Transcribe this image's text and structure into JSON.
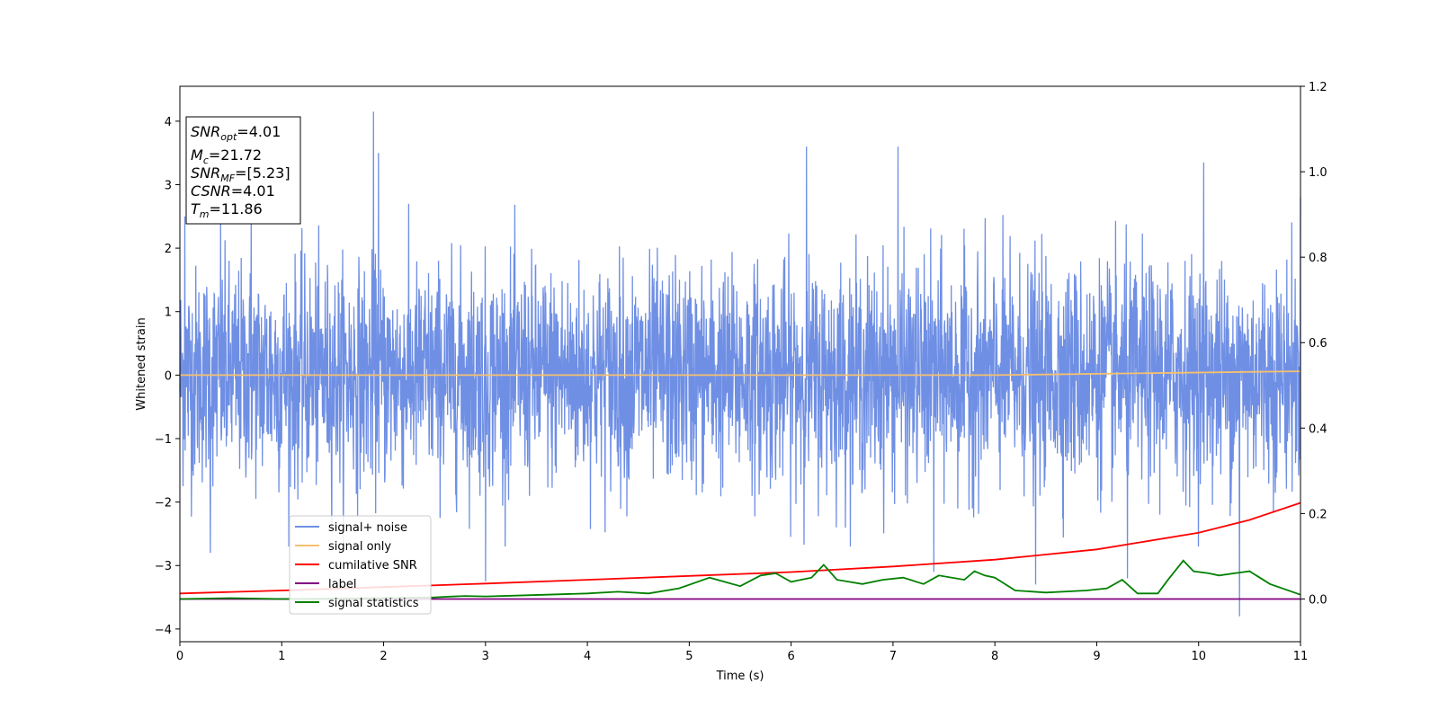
{
  "chart_data": {
    "type": "line",
    "xlabel": "Time (s)",
    "ylabel": "Whitened strain",
    "xlim": [
      0,
      11
    ],
    "ylim_left": [
      -4.2,
      4.55
    ],
    "ylim_right": [
      -0.1,
      1.2
    ],
    "x_ticks": [
      "0",
      "1",
      "2",
      "3",
      "4",
      "5",
      "6",
      "7",
      "8",
      "9",
      "10",
      "11"
    ],
    "y_ticks_left": [
      "−4",
      "−3",
      "−2",
      "−1",
      "0",
      "1",
      "2",
      "3",
      "4"
    ],
    "y_ticks_right": [
      "0.0",
      "0.2",
      "0.4",
      "0.6",
      "0.8",
      "1.0",
      "1.2"
    ],
    "grid": false,
    "legend_placement": "lower-left",
    "series": [
      {
        "name": "signal+ noise",
        "axis": "left",
        "color": "#6f8fe4",
        "description_kind": "noise",
        "amplitude_std": 0.85,
        "peaks": [
          [
            0.05,
            2.5
          ],
          [
            0.4,
            2.5
          ],
          [
            0.7,
            2.6
          ],
          [
            1.9,
            4.15
          ],
          [
            1.95,
            3.5
          ],
          [
            7.05,
            3.6
          ],
          [
            10.05,
            3.35
          ],
          [
            6.15,
            3.6
          ],
          [
            11.0,
            2.8
          ]
        ],
        "troughs": [
          [
            0.3,
            -2.8
          ],
          [
            3.0,
            -3.25
          ],
          [
            8.4,
            -3.3
          ],
          [
            10.4,
            -3.8
          ],
          [
            7.4,
            -3.1
          ],
          [
            9.3,
            -3.2
          ]
        ]
      },
      {
        "name": "signal only",
        "axis": "left",
        "color": "#f5c06f",
        "points": [
          [
            0,
            0.0
          ],
          [
            8,
            0.0
          ],
          [
            9.5,
            0.03
          ],
          [
            11,
            0.06
          ]
        ]
      },
      {
        "name": "cumilative SNR",
        "axis": "right",
        "color": "#ff0000",
        "points": [
          [
            0,
            0.013
          ],
          [
            1,
            0.02
          ],
          [
            2,
            0.028
          ],
          [
            3,
            0.036
          ],
          [
            4,
            0.045
          ],
          [
            5,
            0.054
          ],
          [
            6,
            0.063
          ],
          [
            7,
            0.076
          ],
          [
            8,
            0.092
          ],
          [
            9,
            0.116
          ],
          [
            10,
            0.155
          ],
          [
            10.5,
            0.185
          ],
          [
            11,
            0.225
          ]
        ]
      },
      {
        "name": "label",
        "axis": "right",
        "color": "#800080",
        "points": [
          [
            0,
            0.0
          ],
          [
            11,
            0.0
          ]
        ]
      },
      {
        "name": "signal statistics",
        "axis": "right",
        "color": "#008000",
        "points": [
          [
            0,
            0.0
          ],
          [
            0.5,
            0.002
          ],
          [
            1.0,
            0.0
          ],
          [
            1.5,
            0.001
          ],
          [
            2.0,
            0.002
          ],
          [
            2.5,
            0.004
          ],
          [
            2.8,
            0.007
          ],
          [
            3.0,
            0.006
          ],
          [
            3.3,
            0.008
          ],
          [
            3.6,
            0.01
          ],
          [
            4.0,
            0.013
          ],
          [
            4.3,
            0.017
          ],
          [
            4.6,
            0.013
          ],
          [
            4.9,
            0.025
          ],
          [
            5.2,
            0.05
          ],
          [
            5.5,
            0.03
          ],
          [
            5.7,
            0.055
          ],
          [
            5.85,
            0.06
          ],
          [
            6.0,
            0.04
          ],
          [
            6.2,
            0.05
          ],
          [
            6.32,
            0.08
          ],
          [
            6.45,
            0.045
          ],
          [
            6.7,
            0.035
          ],
          [
            6.9,
            0.045
          ],
          [
            7.1,
            0.05
          ],
          [
            7.3,
            0.035
          ],
          [
            7.45,
            0.055
          ],
          [
            7.7,
            0.045
          ],
          [
            7.8,
            0.065
          ],
          [
            7.9,
            0.055
          ],
          [
            8.0,
            0.05
          ],
          [
            8.2,
            0.02
          ],
          [
            8.5,
            0.015
          ],
          [
            8.9,
            0.02
          ],
          [
            9.1,
            0.025
          ],
          [
            9.25,
            0.045
          ],
          [
            9.4,
            0.013
          ],
          [
            9.6,
            0.013
          ],
          [
            9.7,
            0.045
          ],
          [
            9.85,
            0.09
          ],
          [
            9.95,
            0.065
          ],
          [
            10.1,
            0.06
          ],
          [
            10.2,
            0.055
          ],
          [
            10.35,
            0.06
          ],
          [
            10.5,
            0.065
          ],
          [
            10.7,
            0.035
          ],
          [
            11.0,
            0.01
          ]
        ]
      }
    ],
    "annotation": {
      "lines": [
        {
          "main": "SNR",
          "sub": "opt",
          "rest": "=4.01"
        },
        {
          "main": "M",
          "sub": "c",
          "rest": "=21.72"
        },
        {
          "main": "SNR",
          "sub": "MF",
          "rest": "=[5.23]"
        },
        {
          "main": "CSNR",
          "sub": "",
          "rest": "=4.01"
        },
        {
          "main": "T",
          "sub": "m",
          "rest": "=11.86"
        }
      ]
    }
  }
}
